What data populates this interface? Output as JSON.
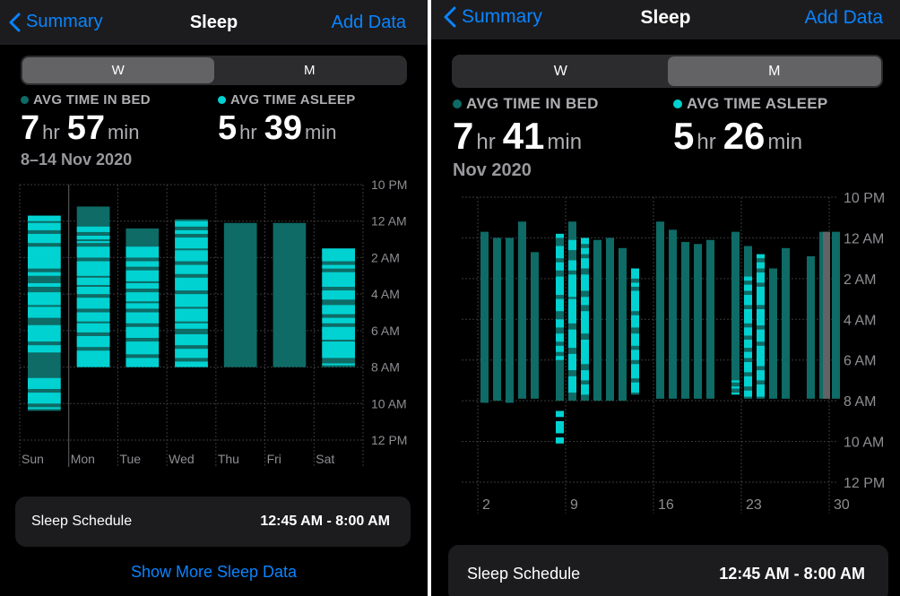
{
  "colors": {
    "accent": "#0a84ff",
    "in_bed": "#0e6b66",
    "asleep": "#00d2d2",
    "grid": "#3a3a3c",
    "axis_text": "#8e8e93"
  },
  "left": {
    "nav": {
      "back": "Summary",
      "title": "Sleep",
      "add": "Add Data"
    },
    "segment": {
      "options": [
        "W",
        "M"
      ],
      "selected": "W"
    },
    "avg_in_bed": {
      "label": "AVG TIME IN BED",
      "hr": "7",
      "hr_unit": "hr",
      "min": "57",
      "min_unit": "min"
    },
    "avg_asleep": {
      "label": "AVG TIME ASLEEP",
      "hr": "5",
      "hr_unit": "hr",
      "min": "39",
      "min_unit": "min"
    },
    "period": "8–14 Nov 2020",
    "schedule": {
      "label": "Sleep Schedule",
      "value": "12:45 AM - 8:00 AM"
    },
    "show_more": "Show More Sleep Data"
  },
  "right": {
    "nav": {
      "back": "Summary",
      "title": "Sleep",
      "add": "Add Data"
    },
    "segment": {
      "options": [
        "W",
        "M"
      ],
      "selected": "M"
    },
    "avg_in_bed": {
      "label": "AVG TIME IN BED",
      "hr": "7",
      "hr_unit": "hr",
      "min": "41",
      "min_unit": "min"
    },
    "avg_asleep": {
      "label": "AVG TIME ASLEEP",
      "hr": "5",
      "hr_unit": "hr",
      "min": "26",
      "min_unit": "min"
    },
    "period": "Nov 2020",
    "schedule": {
      "label": "Sleep Schedule",
      "value": "12:45 AM - 8:00 AM"
    }
  },
  "chart_data": [
    {
      "type": "bar",
      "y_axis_hours_after_10pm": [
        0,
        14
      ],
      "y_ticks": [
        "10 PM",
        "12 AM",
        "2 AM",
        "4 AM",
        "6 AM",
        "8 AM",
        "10 AM",
        "12 PM"
      ],
      "categories": [
        "Sun",
        "Mon",
        "Tue",
        "Wed",
        "Thu",
        "Fri",
        "Sat"
      ],
      "in_bed": [
        [
          1.7,
          12.4
        ],
        [
          1.2,
          10.0
        ],
        [
          2.4,
          10.0
        ],
        [
          1.9,
          10.0
        ],
        [
          2.1,
          10.0
        ],
        [
          2.1,
          10.0
        ],
        [
          3.5,
          10.0
        ]
      ],
      "asleep": [
        [
          [
            1.7,
            2.0
          ],
          [
            2.1,
            2.5
          ],
          [
            2.7,
            3.2
          ],
          [
            3.4,
            4.6
          ],
          [
            4.8,
            5.0
          ],
          [
            5.4,
            5.6
          ],
          [
            5.9,
            6.6
          ],
          [
            6.7,
            7.3
          ],
          [
            7.7,
            8.6
          ],
          [
            8.8,
            9.2
          ],
          [
            10.6,
            11.2
          ],
          [
            11.4,
            12.0
          ],
          [
            12.2,
            12.3
          ]
        ],
        [
          [
            2.3,
            2.6
          ],
          [
            2.8,
            3.0
          ],
          [
            3.1,
            3.2
          ],
          [
            3.4,
            4.0
          ],
          [
            4.2,
            5.0
          ],
          [
            5.1,
            5.5
          ],
          [
            5.6,
            6.0
          ],
          [
            6.2,
            6.8
          ],
          [
            7.0,
            7.5
          ],
          [
            7.6,
            8.1
          ],
          [
            8.3,
            8.9
          ],
          [
            9.1,
            10.0
          ]
        ],
        [
          [
            3.4,
            4.0
          ],
          [
            4.2,
            4.5
          ],
          [
            4.7,
            5.3
          ],
          [
            5.4,
            5.7
          ],
          [
            5.9,
            6.4
          ],
          [
            6.5,
            6.8
          ],
          [
            7.0,
            7.6
          ],
          [
            7.8,
            8.4
          ],
          [
            8.6,
            9.3
          ],
          [
            9.5,
            10.0
          ]
        ],
        [
          [
            2.0,
            2.3
          ],
          [
            2.5,
            2.7
          ],
          [
            2.9,
            3.5
          ],
          [
            3.6,
            4.2
          ],
          [
            4.4,
            4.9
          ],
          [
            5.1,
            5.8
          ],
          [
            6.0,
            6.7
          ],
          [
            6.8,
            7.5
          ],
          [
            7.6,
            7.9
          ],
          [
            8.2,
            8.8
          ],
          [
            9.0,
            9.5
          ],
          [
            9.7,
            10.0
          ]
        ],
        [],
        [],
        [
          [
            3.5,
            4.2
          ],
          [
            4.4,
            4.6
          ],
          [
            4.8,
            5.6
          ],
          [
            5.8,
            6.3
          ],
          [
            6.6,
            7.1
          ],
          [
            7.3,
            7.6
          ],
          [
            7.8,
            8.5
          ],
          [
            8.6,
            9.5
          ],
          [
            9.8,
            9.9
          ]
        ]
      ]
    },
    {
      "type": "bar",
      "y_axis_hours_after_10pm": [
        0,
        14
      ],
      "y_ticks": [
        "10 PM",
        "12 AM",
        "2 AM",
        "4 AM",
        "6 AM",
        "8 AM",
        "10 AM",
        "12 PM"
      ],
      "x_ticks": [
        "2",
        "9",
        "16",
        "23",
        "30"
      ],
      "days": [
        1,
        2,
        3,
        4,
        5,
        6,
        7,
        8,
        9,
        10,
        11,
        12,
        13,
        14,
        15,
        16,
        17,
        18,
        19,
        20,
        21,
        22,
        23,
        24,
        25,
        26,
        27,
        28,
        29,
        30
      ],
      "in_bed": [
        null,
        [
          1.7,
          10.1
        ],
        [
          2.0,
          10.0
        ],
        [
          2.0,
          10.1
        ],
        [
          1.2,
          9.9
        ],
        [
          2.7,
          9.9
        ],
        null,
        [
          1.8,
          10.0
        ],
        [
          1.2,
          10.0
        ],
        [
          2.0,
          10.0
        ],
        [
          2.1,
          10.0
        ],
        [
          2.0,
          10.0
        ],
        [
          2.5,
          10.0
        ],
        [
          3.5,
          9.7
        ],
        null,
        [
          1.2,
          9.9
        ],
        [
          1.6,
          9.9
        ],
        [
          2.2,
          9.9
        ],
        [
          2.3,
          9.9
        ],
        [
          2.1,
          9.9
        ],
        null,
        [
          1.7,
          9.6
        ],
        [
          2.4,
          9.9
        ],
        [
          2.9,
          9.9
        ],
        [
          3.5,
          9.9
        ],
        [
          2.5,
          9.9
        ],
        null,
        [
          2.9,
          9.9
        ],
        [
          1.7,
          9.9
        ],
        [
          1.7,
          9.9
        ]
      ],
      "asleep": [
        [],
        [],
        [],
        [],
        [],
        [],
        [],
        [
          [
            1.8,
            2.0
          ],
          [
            2.4,
            3.0
          ],
          [
            3.2,
            3.6
          ],
          [
            3.9,
            4.8
          ],
          [
            5.0,
            5.6
          ],
          [
            6.0,
            6.4
          ],
          [
            6.7,
            7.1
          ],
          [
            7.3,
            7.6
          ],
          [
            7.8,
            8.0
          ],
          [
            10.5,
            10.8
          ],
          [
            11.0,
            11.6
          ],
          [
            11.8,
            12.1
          ]
        ],
        [
          [
            2.1,
            2.6
          ],
          [
            3.1,
            3.6
          ],
          [
            3.8,
            4.9
          ],
          [
            5.0,
            6.2
          ],
          [
            6.5,
            7.4
          ],
          [
            7.7,
            8.5
          ],
          [
            8.8,
            9.6
          ]
        ],
        [
          [
            2.0,
            2.3
          ],
          [
            2.5,
            2.8
          ],
          [
            3.0,
            3.5
          ],
          [
            3.8,
            4.6
          ],
          [
            4.9,
            5.3
          ],
          [
            5.6,
            6.7
          ],
          [
            7.0,
            8.2
          ],
          [
            8.5,
            9.0
          ],
          [
            9.2,
            9.7
          ]
        ],
        [],
        [],
        [],
        [
          [
            3.5,
            4.0
          ],
          [
            4.2,
            4.4
          ],
          [
            4.6,
            5.6
          ],
          [
            5.8,
            6.4
          ],
          [
            6.7,
            7.3
          ],
          [
            7.5,
            8.0
          ],
          [
            8.2,
            8.9
          ],
          [
            9.1,
            9.6
          ]
        ],
        [],
        [],
        [],
        [],
        [],
        [],
        [],
        [
          [
            9.0,
            9.1
          ],
          [
            9.3,
            9.4
          ],
          [
            9.6,
            9.7
          ]
        ],
        [
          [
            3.9,
            4.1
          ],
          [
            4.3,
            4.6
          ],
          [
            4.8,
            5.3
          ],
          [
            5.5,
            6.2
          ],
          [
            6.4,
            6.8
          ],
          [
            7.0,
            7.4
          ],
          [
            7.6,
            7.9
          ],
          [
            8.1,
            8.6
          ],
          [
            8.8,
            9.3
          ],
          [
            9.5,
            9.8
          ]
        ],
        [
          [
            2.8,
            3.0
          ],
          [
            3.2,
            3.5
          ],
          [
            3.7,
            4.2
          ],
          [
            4.4,
            5.3
          ],
          [
            5.5,
            6.3
          ],
          [
            6.5,
            7.1
          ],
          [
            7.3,
            8.3
          ],
          [
            8.5,
            9.0
          ],
          [
            9.2,
            9.8
          ]
        ],
        [],
        [],
        [],
        []
      ],
      "extra_bar": [
        1.7,
        9.9
      ]
    }
  ]
}
